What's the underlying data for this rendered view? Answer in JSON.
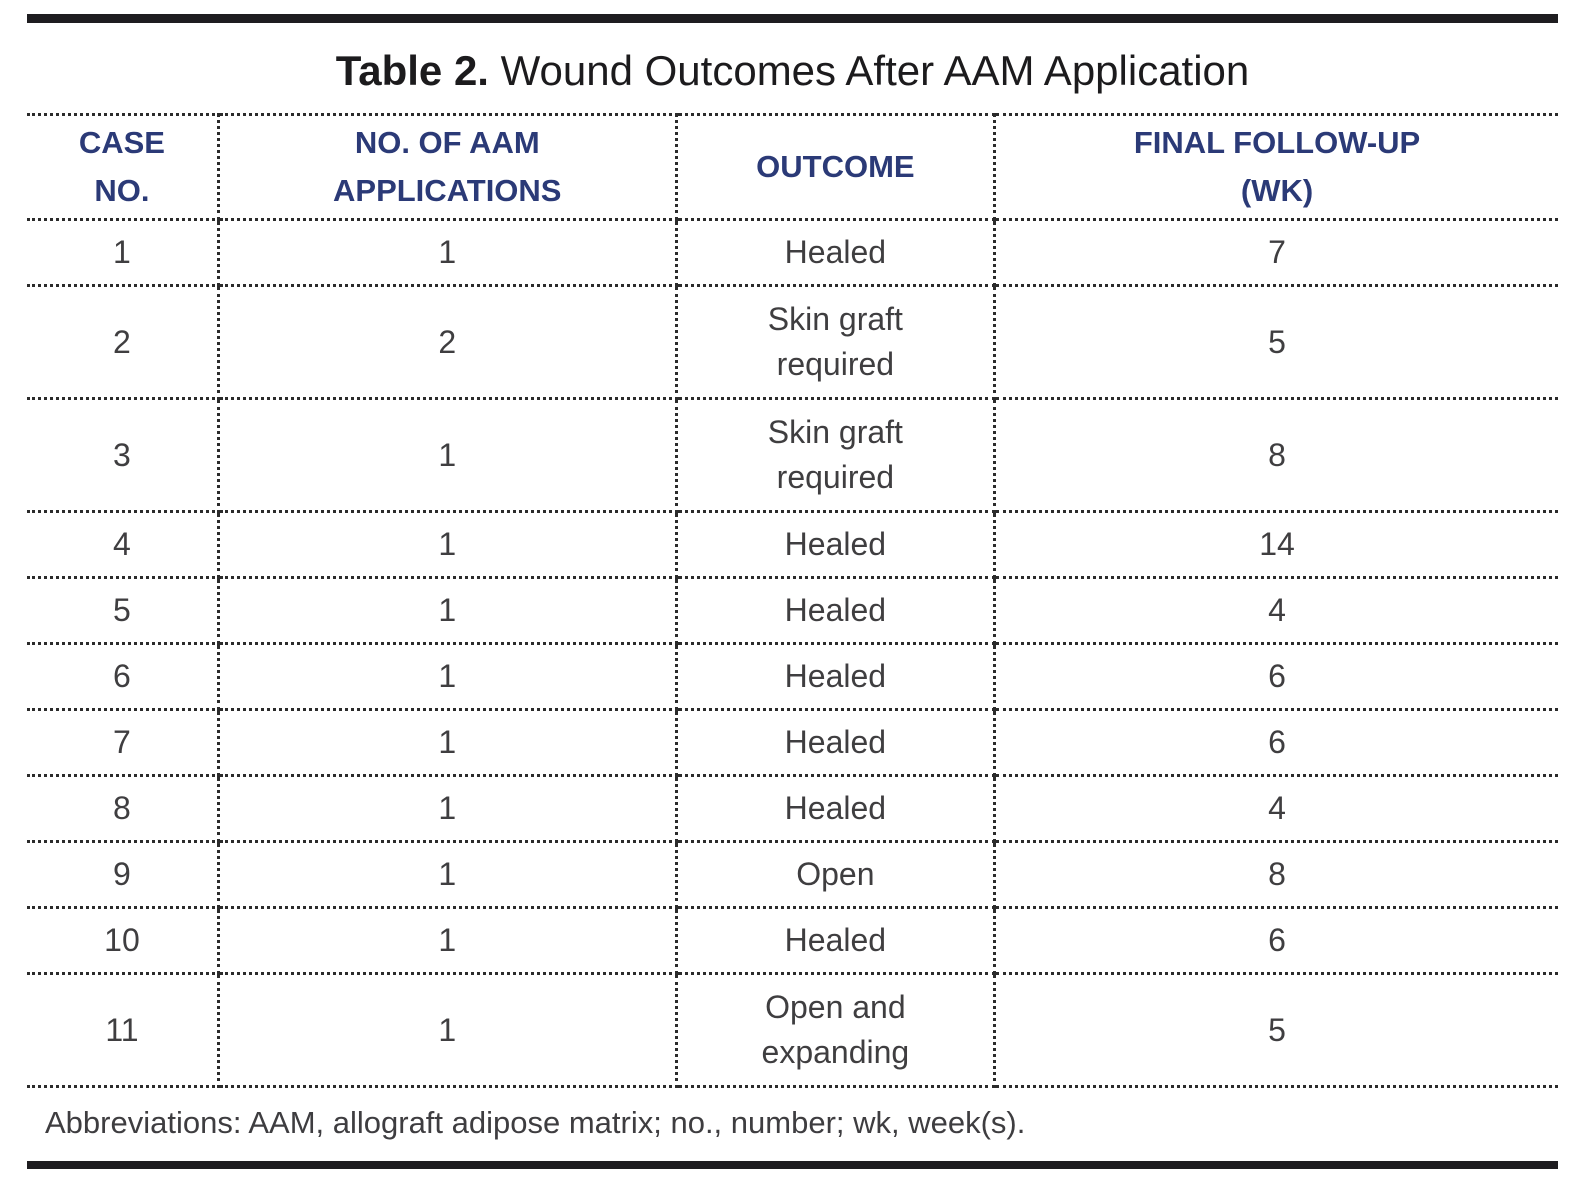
{
  "title": {
    "label": "Table 2.",
    "text": "Wound Outcomes After AAM Application"
  },
  "colors": {
    "header_text": "#2b3a77",
    "body_text": "#3f3e40",
    "rule": "#1e1d20",
    "dotted_border": "#2b2b2b"
  },
  "table": {
    "headers": {
      "case": {
        "lines": [
          "CASE",
          "NO."
        ]
      },
      "applications": {
        "lines": [
          "NO. OF AAM",
          "APPLICATIONS"
        ]
      },
      "outcome": {
        "lines": [
          "OUTCOME"
        ]
      },
      "follow_up": {
        "lines": [
          "FINAL FOLLOW-UP",
          "(WK)"
        ]
      }
    },
    "rows": [
      {
        "case_no": "1",
        "applications": "1",
        "outcome": "Healed",
        "follow_up_wk": "7"
      },
      {
        "case_no": "2",
        "applications": "2",
        "outcome": "Skin graft required",
        "follow_up_wk": "5"
      },
      {
        "case_no": "3",
        "applications": "1",
        "outcome": "Skin graft required",
        "follow_up_wk": "8"
      },
      {
        "case_no": "4",
        "applications": "1",
        "outcome": "Healed",
        "follow_up_wk": "14"
      },
      {
        "case_no": "5",
        "applications": "1",
        "outcome": "Healed",
        "follow_up_wk": "4"
      },
      {
        "case_no": "6",
        "applications": "1",
        "outcome": "Healed",
        "follow_up_wk": "6"
      },
      {
        "case_no": "7",
        "applications": "1",
        "outcome": "Healed",
        "follow_up_wk": "6"
      },
      {
        "case_no": "8",
        "applications": "1",
        "outcome": "Healed",
        "follow_up_wk": "4"
      },
      {
        "case_no": "9",
        "applications": "1",
        "outcome": "Open",
        "follow_up_wk": "8"
      },
      {
        "case_no": "10",
        "applications": "1",
        "outcome": "Healed",
        "follow_up_wk": "6"
      },
      {
        "case_no": "11",
        "applications": "1",
        "outcome": "Open and expanding",
        "follow_up_wk": "5"
      }
    ],
    "footnote": "Abbreviations: AAM, allograft adipose matrix; no., number; wk, week(s)."
  }
}
